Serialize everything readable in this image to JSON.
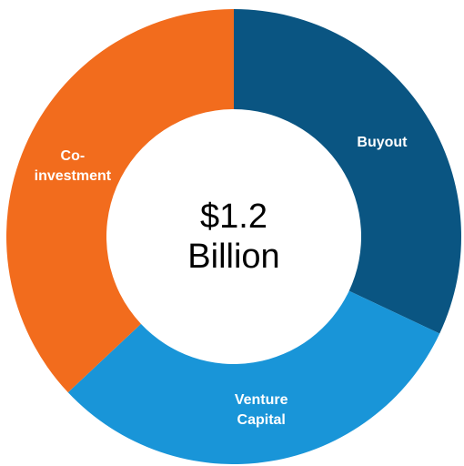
{
  "chart_data": {
    "type": "donut",
    "center_text": "$1.2 Billion",
    "categories": [
      "Buyout",
      "Venture Capital",
      "Co-investment"
    ],
    "values": [
      32,
      31,
      37
    ],
    "colors": [
      "#0a5582",
      "#1995d8",
      "#f26c1d"
    ]
  }
}
